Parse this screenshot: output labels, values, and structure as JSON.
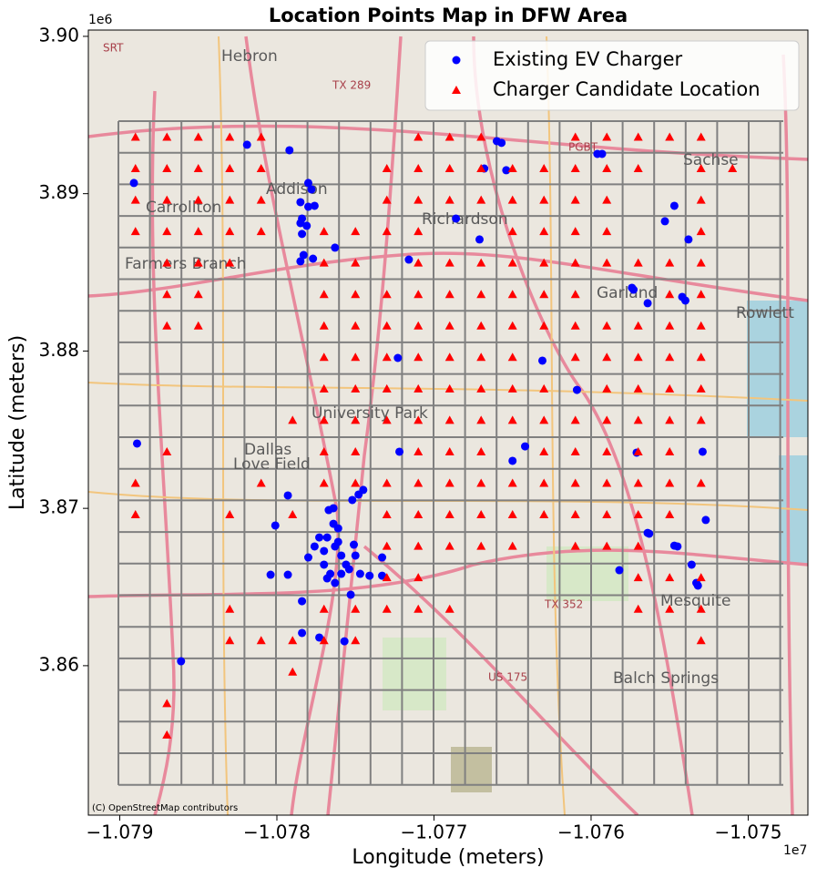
{
  "chart_data": {
    "type": "scatter",
    "title": "Location Points Map in DFW Area",
    "x_label": "Longitude (meters)",
    "y_label": "Latitude (meters)",
    "x_offset_label": "1e7",
    "y_offset_label": "1e6",
    "attribution": "(C) OpenStreetMap contributors",
    "basemap_labels": [
      "Carrollton",
      "Richardson",
      "Garland",
      "Mesquite",
      "Addison",
      "Farmers Branch",
      "Balch Springs",
      "Sachse",
      "Rowlett",
      "University Park",
      "Hebron",
      "Dallas",
      "Love Field",
      "TX 289",
      "US 175",
      "TX 352",
      "PGBT",
      "SRT"
    ],
    "xlim": [
      -1.0792,
      -1.07462
    ],
    "ylim": [
      3.8505,
      3.9004
    ],
    "xticks": [
      {
        "value": -1.079,
        "label": "−1.079"
      },
      {
        "value": -1.078,
        "label": "−1.078"
      },
      {
        "value": -1.077,
        "label": "−1.077"
      },
      {
        "value": -1.076,
        "label": "−1.076"
      },
      {
        "value": -1.075,
        "label": "−1.075"
      }
    ],
    "yticks": [
      3.86,
      3.87,
      3.88,
      3.89,
      {
        "value": 3.9,
        "label": "3.90"
      }
    ],
    "grid": false,
    "legend": "upper right",
    "series": [
      {
        "name": "Existing EV Charger",
        "color": "#0000ff",
        "marker": "circle",
        "x": [
          -1.07891,
          -1.07819,
          -1.07792,
          -1.0778,
          -1.07778,
          -1.07785,
          -1.0778,
          -1.07776,
          -1.07784,
          -1.07785,
          -1.07781,
          -1.07784,
          -1.07763,
          -1.07783,
          -1.07777,
          -1.07785,
          -1.07716,
          -1.07686,
          -1.07671,
          -1.0766,
          -1.07657,
          -1.07668,
          -1.07654,
          -1.07631,
          -1.07609,
          -1.07596,
          -1.07593,
          -1.07553,
          -1.07547,
          -1.07538,
          -1.07574,
          -1.07573,
          -1.07564,
          -1.07542,
          -1.0754,
          -1.07723,
          -1.07889,
          -1.07722,
          -1.07642,
          -1.0765,
          -1.07571,
          -1.07529,
          -1.07793,
          -1.07801,
          -1.07804,
          -1.07793,
          -1.07748,
          -1.07745,
          -1.07752,
          -1.07767,
          -1.07764,
          -1.07761,
          -1.07773,
          -1.07776,
          -1.0778,
          -1.0777,
          -1.07763,
          -1.07759,
          -1.07756,
          -1.07766,
          -1.07763,
          -1.07768,
          -1.07754,
          -1.07747,
          -1.07741,
          -1.07733,
          -1.07733,
          -1.07784,
          -1.07753,
          -1.07773,
          -1.07784,
          -1.07757,
          -1.07861,
          -1.07564,
          -1.07563,
          -1.07547,
          -1.07545,
          -1.07536,
          -1.07533,
          -1.07532,
          -1.07527,
          -1.07582,
          -1.07764,
          -1.07768,
          -1.07761,
          -1.07751,
          -1.0775,
          -1.0777,
          -1.07759
        ],
        "y": [
          3.89068,
          3.89311,
          3.89276,
          3.89068,
          3.89027,
          3.88946,
          3.88917,
          3.88923,
          3.88842,
          3.88813,
          3.88796,
          3.88744,
          3.88657,
          3.8861,
          3.88587,
          3.8857,
          3.88581,
          3.88842,
          3.88709,
          3.89334,
          3.89323,
          3.8916,
          3.89149,
          3.87939,
          3.87753,
          3.89253,
          3.89253,
          3.88825,
          3.88923,
          3.88709,
          3.88402,
          3.8839,
          3.88304,
          3.88344,
          3.88321,
          3.87956,
          3.87412,
          3.8736,
          3.87394,
          3.87302,
          3.87354,
          3.8736,
          3.87082,
          3.86891,
          3.86578,
          3.86578,
          3.87088,
          3.87117,
          3.87053,
          3.86989,
          3.87001,
          3.86873,
          3.86815,
          3.86758,
          3.86688,
          3.86729,
          3.86758,
          3.867,
          3.86642,
          3.86584,
          3.86526,
          3.86555,
          3.86613,
          3.86584,
          3.86572,
          3.86688,
          3.86572,
          3.8641,
          3.86451,
          3.86179,
          3.86208,
          3.86155,
          3.86028,
          3.86844,
          3.86839,
          3.86763,
          3.86758,
          3.86642,
          3.86526,
          3.86509,
          3.86926,
          3.86607,
          3.86902,
          3.86815,
          3.86787,
          3.86769,
          3.867,
          3.86642,
          3.86584
        ]
      },
      {
        "name": "Charger Candidate Location",
        "color": "#ff0000",
        "marker": "triangle",
        "x": [
          -1.0789,
          -1.0787,
          -1.0785,
          -1.0783,
          -1.0781,
          -1.0771,
          -1.0769,
          -1.0767,
          -1.0761,
          -1.0759,
          -1.0757,
          -1.0755,
          -1.0753,
          -1.0789,
          -1.0787,
          -1.0785,
          -1.0783,
          -1.0781,
          -1.0773,
          -1.0771,
          -1.0769,
          -1.0767,
          -1.0765,
          -1.0763,
          -1.0761,
          -1.0759,
          -1.0757,
          -1.0753,
          -1.0751,
          -1.0789,
          -1.0787,
          -1.0785,
          -1.0783,
          -1.0781,
          -1.0773,
          -1.0771,
          -1.0769,
          -1.0767,
          -1.0765,
          -1.0763,
          -1.0761,
          -1.0759,
          -1.0753,
          -1.0789,
          -1.0787,
          -1.0785,
          -1.0783,
          -1.0781,
          -1.0777,
          -1.0775,
          -1.0773,
          -1.0771,
          -1.0765,
          -1.0763,
          -1.0761,
          -1.0759,
          -1.0753,
          -1.0787,
          -1.0785,
          -1.0783,
          -1.0777,
          -1.0775,
          -1.0771,
          -1.0769,
          -1.0767,
          -1.0765,
          -1.0763,
          -1.0761,
          -1.0759,
          -1.0757,
          -1.0755,
          -1.0753,
          -1.0787,
          -1.0785,
          -1.0777,
          -1.0775,
          -1.0773,
          -1.0771,
          -1.0769,
          -1.0767,
          -1.0765,
          -1.0763,
          -1.0761,
          -1.0755,
          -1.0753,
          -1.0787,
          -1.0785,
          -1.0777,
          -1.0775,
          -1.0773,
          -1.0771,
          -1.0769,
          -1.0767,
          -1.0765,
          -1.0763,
          -1.0761,
          -1.0759,
          -1.0757,
          -1.0755,
          -1.0753,
          -1.0777,
          -1.0775,
          -1.0773,
          -1.0771,
          -1.0769,
          -1.0767,
          -1.0765,
          -1.0761,
          -1.0759,
          -1.0757,
          -1.0755,
          -1.0753,
          -1.0777,
          -1.0775,
          -1.0773,
          -1.0771,
          -1.0769,
          -1.0767,
          -1.0765,
          -1.0763,
          -1.0759,
          -1.0757,
          -1.0755,
          -1.0753,
          -1.0779,
          -1.0777,
          -1.0775,
          -1.0773,
          -1.0771,
          -1.0769,
          -1.0767,
          -1.0765,
          -1.0763,
          -1.0761,
          -1.0759,
          -1.0757,
          -1.0755,
          -1.0753,
          -1.0787,
          -1.0777,
          -1.0775,
          -1.0771,
          -1.0769,
          -1.0767,
          -1.0763,
          -1.0761,
          -1.0759,
          -1.0757,
          -1.0755,
          -1.0789,
          -1.0781,
          -1.0777,
          -1.0775,
          -1.0773,
          -1.0771,
          -1.0769,
          -1.0767,
          -1.0765,
          -1.0763,
          -1.0761,
          -1.0759,
          -1.0757,
          -1.0755,
          -1.0753,
          -1.0789,
          -1.0783,
          -1.0779,
          -1.0773,
          -1.0771,
          -1.0769,
          -1.0767,
          -1.0765,
          -1.0763,
          -1.0761,
          -1.0759,
          -1.0757,
          -1.0755,
          -1.0773,
          -1.0771,
          -1.0769,
          -1.0767,
          -1.0765,
          -1.0761,
          -1.0759,
          -1.0757,
          -1.0773,
          -1.0771,
          -1.0757,
          -1.0755,
          -1.0753,
          -1.0783,
          -1.0777,
          -1.0775,
          -1.0773,
          -1.0771,
          -1.0769,
          -1.0757,
          -1.0755,
          -1.0753,
          -1.0783,
          -1.0781,
          -1.0779,
          -1.0777,
          -1.0775,
          -1.0753,
          -1.0779,
          -1.0787,
          -1.0787
        ],
        "y": [
          3.8936,
          3.8936,
          3.8936,
          3.8936,
          3.8936,
          3.8936,
          3.8936,
          3.8936,
          3.8936,
          3.8936,
          3.8936,
          3.8936,
          3.8936,
          3.8916,
          3.8916,
          3.8916,
          3.8916,
          3.8916,
          3.8916,
          3.8916,
          3.8916,
          3.8916,
          3.8916,
          3.8916,
          3.8916,
          3.8916,
          3.8916,
          3.8916,
          3.8916,
          3.8896,
          3.8896,
          3.8896,
          3.8896,
          3.8896,
          3.8896,
          3.8896,
          3.8896,
          3.8896,
          3.8896,
          3.8896,
          3.8896,
          3.8896,
          3.8896,
          3.8876,
          3.8876,
          3.8876,
          3.8876,
          3.8876,
          3.8876,
          3.8876,
          3.8876,
          3.8876,
          3.8876,
          3.8876,
          3.8876,
          3.8876,
          3.8876,
          3.8856,
          3.8856,
          3.8856,
          3.8856,
          3.8856,
          3.8856,
          3.8856,
          3.8856,
          3.8856,
          3.8856,
          3.8856,
          3.8856,
          3.8856,
          3.8856,
          3.8856,
          3.8836,
          3.8836,
          3.8836,
          3.8836,
          3.8836,
          3.8836,
          3.8836,
          3.8836,
          3.8836,
          3.8836,
          3.8836,
          3.8836,
          3.8836,
          3.8816,
          3.8816,
          3.8816,
          3.8816,
          3.8816,
          3.8816,
          3.8816,
          3.8816,
          3.8816,
          3.8816,
          3.8816,
          3.8816,
          3.8816,
          3.8816,
          3.8816,
          3.8796,
          3.8796,
          3.8796,
          3.8796,
          3.8796,
          3.8796,
          3.8796,
          3.8796,
          3.8796,
          3.8796,
          3.8796,
          3.8796,
          3.8776,
          3.8776,
          3.8776,
          3.8776,
          3.8776,
          3.8776,
          3.8776,
          3.8776,
          3.8776,
          3.8776,
          3.8776,
          3.8776,
          3.8756,
          3.8756,
          3.8756,
          3.8756,
          3.8756,
          3.8756,
          3.8756,
          3.8756,
          3.8756,
          3.8756,
          3.8756,
          3.8756,
          3.8756,
          3.8756,
          3.8736,
          3.8736,
          3.8736,
          3.8736,
          3.8736,
          3.8736,
          3.8736,
          3.8736,
          3.8736,
          3.8736,
          3.8736,
          3.8716,
          3.8716,
          3.8716,
          3.8716,
          3.8716,
          3.8716,
          3.8716,
          3.8716,
          3.8716,
          3.8716,
          3.8716,
          3.8716,
          3.8716,
          3.8716,
          3.8716,
          3.8696,
          3.8696,
          3.8696,
          3.8696,
          3.8696,
          3.8696,
          3.8696,
          3.8696,
          3.8696,
          3.8696,
          3.8696,
          3.8696,
          3.8696,
          3.8676,
          3.8676,
          3.8676,
          3.8676,
          3.8676,
          3.8676,
          3.8676,
          3.8676,
          3.8656,
          3.8656,
          3.8656,
          3.8656,
          3.8656,
          3.8636,
          3.8636,
          3.8636,
          3.8636,
          3.8636,
          3.8636,
          3.8636,
          3.8636,
          3.8636,
          3.8616,
          3.8616,
          3.8616,
          3.8616,
          3.8616,
          3.8616,
          3.8596,
          3.8576,
          3.8556
        ]
      }
    ]
  }
}
